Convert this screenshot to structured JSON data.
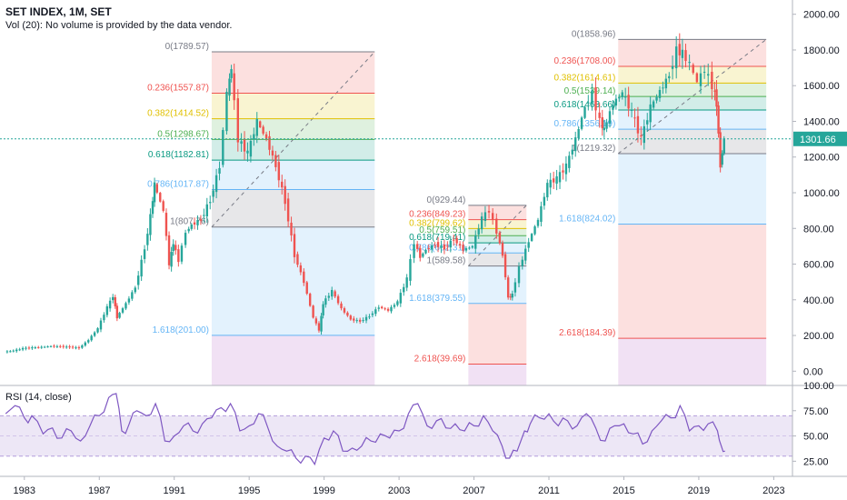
{
  "header": {
    "title": "SET INDEX, 1M, SET",
    "volume_note": "Vol (20): No volume is provided by the data vendor."
  },
  "rsi_panel": {
    "label": "RSI (14, close)"
  },
  "price_axis": {
    "ticks": [
      "2000.00",
      "1800.00",
      "1600.00",
      "1400.00",
      "1200.00",
      "1000.00",
      "800.00",
      "600.00",
      "400.00",
      "200.00",
      "0.00"
    ],
    "last_price": "1301.66"
  },
  "rsi_axis": {
    "ticks": [
      "100.00",
      "75.00",
      "50.00",
      "25.00"
    ]
  },
  "time_axis": {
    "ticks": [
      "1983",
      "1987",
      "1991",
      "1995",
      "1999",
      "2003",
      "2007",
      "2011",
      "2015",
      "2019",
      "2023"
    ]
  },
  "colors": {
    "up": "#26a69a",
    "down": "#ef5350",
    "rsi_line": "#7e57c2",
    "rsi_band": "#ede7f6",
    "last_price": "#26a69a",
    "fib_red": "#ef5350",
    "fib_yellow": "#e0c000",
    "fib_green": "#4caf50",
    "fib_teal": "#089981",
    "fib_blue": "#64b5f6",
    "fib_gray": "#787b86"
  },
  "chart_data": [
    {
      "type": "candlestick",
      "title": "SET INDEX, 1M, SET",
      "y_range": [
        -80,
        2080
      ],
      "x_range": [
        1981.7,
        2024.0
      ],
      "grid": false,
      "closes": [
        [
          1982.0,
          108
        ],
        [
          1982.5,
          115
        ],
        [
          1983.0,
          128
        ],
        [
          1983.5,
          132
        ],
        [
          1984.0,
          135
        ],
        [
          1984.5,
          140
        ],
        [
          1985.0,
          138
        ],
        [
          1985.5,
          135
        ],
        [
          1986.0,
          130
        ],
        [
          1986.5,
          175
        ],
        [
          1987.0,
          240
        ],
        [
          1987.5,
          360
        ],
        [
          1987.8,
          420
        ],
        [
          1988.0,
          300
        ],
        [
          1988.5,
          380
        ],
        [
          1989.0,
          470
        ],
        [
          1989.5,
          690
        ],
        [
          1989.8,
          870
        ],
        [
          1990.0,
          1050
        ],
        [
          1990.5,
          900
        ],
        [
          1990.8,
          600
        ],
        [
          1991.0,
          720
        ],
        [
          1991.3,
          620
        ],
        [
          1991.7,
          780
        ],
        [
          1992.0,
          820
        ],
        [
          1992.5,
          850
        ],
        [
          1993.0,
          960
        ],
        [
          1993.5,
          1150
        ],
        [
          1993.9,
          1560
        ],
        [
          1994.1,
          1700
        ],
        [
          1994.5,
          1300
        ],
        [
          1995.0,
          1220
        ],
        [
          1995.5,
          1400
        ],
        [
          1996.0,
          1300
        ],
        [
          1996.5,
          1150
        ],
        [
          1997.0,
          950
        ],
        [
          1997.5,
          650
        ],
        [
          1998.0,
          500
        ],
        [
          1998.5,
          300
        ],
        [
          1998.8,
          230
        ],
        [
          1999.0,
          380
        ],
        [
          1999.5,
          450
        ],
        [
          2000.0,
          350
        ],
        [
          2000.5,
          290
        ],
        [
          2001.0,
          280
        ],
        [
          2001.5,
          310
        ],
        [
          2002.0,
          360
        ],
        [
          2002.5,
          340
        ],
        [
          2003.0,
          390
        ],
        [
          2003.5,
          520
        ],
        [
          2003.9,
          720
        ],
        [
          2004.2,
          640
        ],
        [
          2004.5,
          680
        ],
        [
          2005.0,
          710
        ],
        [
          2005.5,
          690
        ],
        [
          2006.0,
          740
        ],
        [
          2006.5,
          680
        ],
        [
          2007.0,
          700
        ],
        [
          2007.5,
          860
        ],
        [
          2007.9,
          900
        ],
        [
          2008.3,
          780
        ],
        [
          2008.6,
          650
        ],
        [
          2008.9,
          410
        ],
        [
          2009.1,
          430
        ],
        [
          2009.5,
          580
        ],
        [
          2010.0,
          730
        ],
        [
          2010.5,
          850
        ],
        [
          2011.0,
          1050
        ],
        [
          2011.5,
          1080
        ],
        [
          2012.0,
          1150
        ],
        [
          2012.5,
          1300
        ],
        [
          2013.0,
          1480
        ],
        [
          2013.4,
          1560
        ],
        [
          2013.8,
          1400
        ],
        [
          2014.0,
          1350
        ],
        [
          2014.5,
          1500
        ],
        [
          2015.0,
          1560
        ],
        [
          2015.5,
          1450
        ],
        [
          2016.0,
          1300
        ],
        [
          2016.5,
          1480
        ],
        [
          2017.0,
          1570
        ],
        [
          2017.5,
          1660
        ],
        [
          2017.9,
          1800
        ],
        [
          2018.2,
          1780
        ],
        [
          2018.6,
          1720
        ],
        [
          2019.0,
          1620
        ],
        [
          2019.4,
          1690
        ],
        [
          2019.8,
          1600
        ],
        [
          2020.0,
          1500
        ],
        [
          2020.2,
          1150
        ],
        [
          2020.4,
          1301.66
        ]
      ]
    },
    {
      "type": "line",
      "name": "RSI (14, close)",
      "y_range": [
        10,
        100
      ],
      "x_range": [
        1981.7,
        2024.0
      ],
      "bands": [
        30,
        70
      ],
      "x": [
        1982.0,
        1982.5,
        1983.0,
        1983.4,
        1984.0,
        1984.5,
        1985.0,
        1985.5,
        1986.0,
        1986.5,
        1987.0,
        1987.5,
        1987.9,
        1988.2,
        1988.6,
        1989.0,
        1989.5,
        1990.0,
        1990.5,
        1991.0,
        1991.5,
        1992.0,
        1992.5,
        1993.0,
        1993.5,
        1994.0,
        1994.5,
        1995.0,
        1995.5,
        1996.0,
        1996.5,
        1997.0,
        1997.5,
        1998.0,
        1998.5,
        1999.0,
        1999.5,
        2000.0,
        2000.5,
        2001.0,
        2001.5,
        2002.0,
        2002.5,
        2003.0,
        2003.5,
        2004.0,
        2004.5,
        2005.0,
        2005.5,
        2006.0,
        2006.5,
        2007.0,
        2007.5,
        2008.0,
        2008.5,
        2008.9,
        2009.3,
        2009.7,
        2010.0,
        2010.5,
        2011.0,
        2011.5,
        2012.0,
        2012.5,
        2013.0,
        2013.5,
        2014.0,
        2014.5,
        2015.0,
        2015.5,
        2016.0,
        2016.5,
        2017.0,
        2017.5,
        2018.0,
        2018.5,
        2019.0,
        2019.5,
        2020.0,
        2020.2,
        2020.4
      ],
      "values": [
        72,
        80,
        68,
        70,
        52,
        58,
        48,
        55,
        45,
        60,
        70,
        88,
        92,
        55,
        62,
        75,
        70,
        82,
        45,
        50,
        60,
        55,
        62,
        68,
        78,
        82,
        55,
        60,
        72,
        58,
        40,
        35,
        28,
        30,
        22,
        48,
        55,
        35,
        38,
        40,
        45,
        52,
        48,
        55,
        72,
        82,
        60,
        65,
        58,
        62,
        55,
        60,
        70,
        55,
        40,
        28,
        35,
        55,
        62,
        68,
        72,
        60,
        65,
        60,
        72,
        58,
        45,
        60,
        62,
        52,
        42,
        55,
        65,
        68,
        80,
        55,
        60,
        62,
        55,
        40,
        35
      ]
    }
  ],
  "fib_sets": [
    {
      "name": "fib-1994",
      "x0": 1993.0,
      "x1": 2001.7,
      "levels": [
        {
          "label": "0(1789.57)",
          "price": 1789.57,
          "color": "#787b86"
        },
        {
          "label": "0.236(1557.87)",
          "price": 1557.87,
          "color": "#ef5350"
        },
        {
          "label": "0.382(1414.52)",
          "price": 1414.52,
          "color": "#e0c000"
        },
        {
          "label": "0.5(1298.67)",
          "price": 1298.67,
          "color": "#4caf50"
        },
        {
          "label": "0.618(1182.81)",
          "price": 1182.81,
          "color": "#089981"
        },
        {
          "label": "0.786(1017.87)",
          "price": 1017.87,
          "color": "#64b5f6"
        },
        {
          "label": "1(807.76)",
          "price": 807.76,
          "color": "#787b86"
        },
        {
          "label": "1.618(201.00)",
          "price": 201.0,
          "color": "#64b5f6"
        }
      ]
    },
    {
      "name": "fib-2008",
      "x0": 2006.7,
      "x1": 2009.8,
      "levels": [
        {
          "label": "0(929.44)",
          "price": 929.44,
          "color": "#787b86"
        },
        {
          "label": "0.236(849.23)",
          "price": 849.23,
          "color": "#ef5350"
        },
        {
          "label": "0.382(799.62)",
          "price": 799.62,
          "color": "#e0c000"
        },
        {
          "label": "0.5(759.51)",
          "price": 759.51,
          "color": "#4caf50"
        },
        {
          "label": "0.618(719.41)",
          "price": 719.41,
          "color": "#089981"
        },
        {
          "label": "0.786(662.31)",
          "price": 662.31,
          "color": "#64b5f6"
        },
        {
          "label": "1(589.58)",
          "price": 589.58,
          "color": "#787b86"
        },
        {
          "label": "1.618(379.55)",
          "price": 379.55,
          "color": "#64b5f6"
        },
        {
          "label": "2.618(39.69)",
          "price": 39.69,
          "color": "#ef5350"
        }
      ]
    },
    {
      "name": "fib-2018",
      "x0": 2014.7,
      "x1": 2022.6,
      "levels": [
        {
          "label": "0(1858.96)",
          "price": 1858.96,
          "color": "#787b86"
        },
        {
          "label": "0.236(1708.00)",
          "price": 1708.0,
          "color": "#ef5350"
        },
        {
          "label": "0.382(1614.61)",
          "price": 1614.61,
          "color": "#e0c000"
        },
        {
          "label": "0.5(1539.14)",
          "price": 1539.14,
          "color": "#4caf50"
        },
        {
          "label": "0.618(1463.66)",
          "price": 1463.66,
          "color": "#089981"
        },
        {
          "label": "0.786(1356.19)",
          "price": 1356.19,
          "color": "#64b5f6"
        },
        {
          "label": "1(1219.32)",
          "price": 1219.32,
          "color": "#787b86"
        },
        {
          "label": "1.618(824.02)",
          "price": 824.02,
          "color": "#64b5f6"
        },
        {
          "label": "2.618(184.39)",
          "price": 184.39,
          "color": "#ef5350"
        }
      ]
    }
  ]
}
